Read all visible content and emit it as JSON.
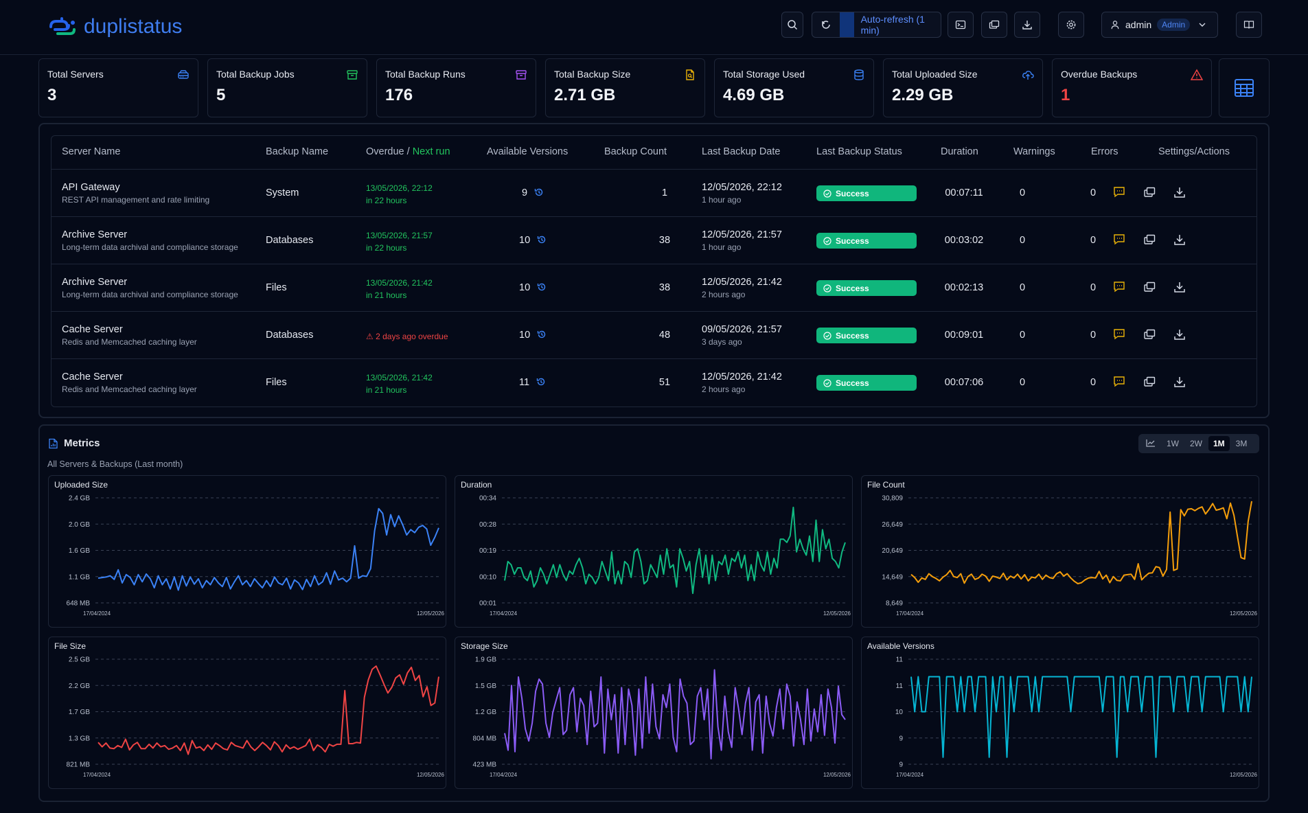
{
  "app": {
    "name": "duplistatus"
  },
  "header": {
    "auto_refresh_label": "Auto-refresh (1 min)",
    "user_name": "admin",
    "user_role": "Admin"
  },
  "summary": [
    {
      "title": "Total Servers",
      "value": "3",
      "icon": "server-icon",
      "color": "#3b82f6"
    },
    {
      "title": "Total Backup Jobs",
      "value": "5",
      "icon": "archive-icon",
      "color": "#22c55e"
    },
    {
      "title": "Total Backup Runs",
      "value": "176",
      "icon": "archive-icon",
      "color": "#a855f7"
    },
    {
      "title": "Total Backup Size",
      "value": "2.71 GB",
      "icon": "file-search-icon",
      "color": "#eab308"
    },
    {
      "title": "Total Storage Used",
      "value": "4.69 GB",
      "icon": "database-icon",
      "color": "#3b82f6"
    },
    {
      "title": "Total Uploaded Size",
      "value": "2.29 GB",
      "icon": "cloud-upload-icon",
      "color": "#3b82f6"
    },
    {
      "title": "Overdue Backups",
      "value": "1",
      "icon": "warning-icon",
      "color": "#ef4444"
    }
  ],
  "table": {
    "headers": {
      "server_name": "Server Name",
      "backup_name": "Backup Name",
      "overdue": "Overdue / ",
      "next_run": "Next run",
      "versions": "Available Versions",
      "count": "Backup Count",
      "last_date": "Last Backup Date",
      "last_status": "Last Backup Status",
      "duration": "Duration",
      "warnings": "Warnings",
      "errors": "Errors",
      "actions": "Settings/Actions"
    },
    "rows": [
      {
        "server": "API Gateway",
        "desc": "REST API management and rate limiting",
        "backup": "System",
        "next_date": "13/05/2026, 22:12",
        "next_rel": "in 22 hours",
        "overdue": false,
        "versions": "9",
        "count": "1",
        "last_date": "12/05/2026, 22:12",
        "last_rel": "1 hour ago",
        "status": "Success",
        "duration": "00:07:11",
        "warnings": "0",
        "errors": "0"
      },
      {
        "server": "Archive Server",
        "desc": "Long-term data archival and compliance storage",
        "backup": "Databases",
        "next_date": "13/05/2026, 21:57",
        "next_rel": "in 22 hours",
        "overdue": false,
        "versions": "10",
        "count": "38",
        "last_date": "12/05/2026, 21:57",
        "last_rel": "1 hour ago",
        "status": "Success",
        "duration": "00:03:02",
        "warnings": "0",
        "errors": "0"
      },
      {
        "server": "Archive Server",
        "desc": "Long-term data archival and compliance storage",
        "backup": "Files",
        "next_date": "13/05/2026, 21:42",
        "next_rel": "in 21 hours",
        "overdue": false,
        "versions": "10",
        "count": "38",
        "last_date": "12/05/2026, 21:42",
        "last_rel": "2 hours ago",
        "status": "Success",
        "duration": "00:02:13",
        "warnings": "0",
        "errors": "0"
      },
      {
        "server": "Cache Server",
        "desc": "Redis and Memcached caching layer",
        "backup": "Databases",
        "next_date": "⚠ 2 days ago overdue",
        "next_rel": "",
        "overdue": true,
        "versions": "10",
        "count": "48",
        "last_date": "09/05/2026, 21:57",
        "last_rel": "3 days ago",
        "status": "Success",
        "duration": "00:09:01",
        "warnings": "0",
        "errors": "0"
      },
      {
        "server": "Cache Server",
        "desc": "Redis and Memcached caching layer",
        "backup": "Files",
        "next_date": "13/05/2026, 21:42",
        "next_rel": "in 21 hours",
        "overdue": false,
        "versions": "11",
        "count": "51",
        "last_date": "12/05/2026, 21:42",
        "last_rel": "2 hours ago",
        "status": "Success",
        "duration": "00:07:06",
        "warnings": "0",
        "errors": "0"
      }
    ]
  },
  "metrics": {
    "title": "Metrics",
    "subtitle": "All Servers & Backups (Last month)",
    "ranges": [
      "1W",
      "2W",
      "1M",
      "3M"
    ],
    "active_range": "1M"
  },
  "chart_data": [
    {
      "type": "line",
      "title": "Uploaded Size",
      "color": "#3b82f6",
      "x_start": "17/04/2024",
      "x_end": "12/05/2026",
      "yticks": [
        "2.4 GB",
        "2.0 GB",
        "1.6 GB",
        "1.1 GB",
        "648 MB"
      ],
      "ylim": [
        0.648,
        2.4
      ],
      "values": [
        1.06,
        1.07,
        1.08,
        1.1,
        1.04,
        1.2,
        0.98,
        1.12,
        1.07,
        0.95,
        1.12,
        1.0,
        1.13,
        1.05,
        0.9,
        1.1,
        0.95,
        1.05,
        0.88,
        1.08,
        0.86,
        1.1,
        0.93,
        1.08,
        0.96,
        1.05,
        0.9,
        1.02,
        0.95,
        1.07,
        0.98,
        0.92,
        1.07,
        0.88,
        1.0,
        1.1,
        0.95,
        1.02,
        0.92,
        1.05,
        0.97,
        0.9,
        1.02,
        0.92,
        1.08,
        0.98,
        0.95,
        1.06,
        0.88,
        1.03,
        0.98,
        0.87,
        1.04,
        0.92,
        1.1,
        0.95,
        1.0,
        1.15,
        0.96,
        1.18,
        1.03,
        1.06,
        1.0,
        1.06,
        1.6,
        1.06,
        1.1,
        1.09,
        1.22,
        1.85,
        2.22,
        2.14,
        1.78,
        2.12,
        1.92,
        2.1,
        1.95,
        1.78,
        1.87,
        1.82,
        1.91,
        1.94,
        1.88,
        1.61,
        1.74,
        1.9
      ]
    },
    {
      "type": "line",
      "title": "Duration",
      "color": "#10b981",
      "x_start": "17/04/2024",
      "x_end": "12/05/2026",
      "yticks": [
        "00:34",
        "00:28",
        "00:19",
        "00:10",
        "00:01"
      ],
      "ylim": [
        1,
        34
      ],
      "values": [
        8,
        14,
        13,
        10,
        12,
        12,
        9,
        8,
        11,
        6,
        8,
        12,
        10,
        7,
        10,
        13,
        9,
        13,
        10,
        8,
        11,
        10,
        13,
        15,
        12,
        7,
        10,
        9,
        7,
        9,
        14,
        11,
        8,
        17,
        7,
        11,
        7,
        14,
        13,
        9,
        17,
        18,
        14,
        7,
        8,
        13,
        11,
        9,
        16,
        10,
        18,
        12,
        13,
        6,
        18,
        15,
        11,
        14,
        4,
        13,
        18,
        9,
        16,
        7,
        16,
        8,
        14,
        13,
        16,
        10,
        15,
        14,
        17,
        12,
        16,
        8,
        13,
        8,
        17,
        13,
        11,
        17,
        10,
        15,
        12,
        21,
        21,
        20,
        22,
        31,
        17,
        21,
        18,
        16,
        22,
        14,
        27,
        14,
        24,
        18,
        21,
        15,
        14,
        12,
        17,
        20
      ]
    },
    {
      "type": "line",
      "title": "File Count",
      "color": "#f59e0b",
      "x_start": "17/04/2024",
      "x_end": "12/05/2026",
      "yticks": [
        "30,809",
        "26,649",
        "20,649",
        "14,649",
        "8,649"
      ],
      "ylim": [
        8649,
        30809
      ],
      "values": [
        14649,
        14000,
        13000,
        13900,
        13600,
        14800,
        14200,
        13800,
        13300,
        14100,
        14600,
        15500,
        14200,
        14000,
        14800,
        12800,
        14200,
        14700,
        13600,
        13900,
        14700,
        14300,
        13200,
        14300,
        14100,
        13800,
        14900,
        13500,
        14300,
        13900,
        14700,
        13700,
        14600,
        13300,
        14100,
        13900,
        14700,
        13600,
        14500,
        14000,
        13800,
        14800,
        15200,
        14300,
        14800,
        13900,
        13200,
        12700,
        12900,
        13500,
        13900,
        14000,
        13900,
        15300,
        13700,
        14500,
        12900,
        14200,
        13400,
        13300,
        14500,
        14600,
        14700,
        13600,
        16900,
        13500,
        14300,
        14900,
        15000,
        16300,
        16100,
        14300,
        15700,
        27800,
        15500,
        15800,
        28300,
        27000,
        28400,
        28500,
        28100,
        28600,
        28900,
        27400,
        28400,
        29600,
        28200,
        28400,
        28700,
        26400,
        29700,
        27100,
        22600,
        18200,
        17900,
        25800,
        30100
      ]
    },
    {
      "type": "line",
      "title": "File Size",
      "color": "#ef4444",
      "x_start": "17/04/2024",
      "x_end": "12/05/2026",
      "yticks": [
        "2.5 GB",
        "2.2 GB",
        "1.7 GB",
        "1.3 GB",
        "821 MB"
      ],
      "ylim": [
        0.821,
        2.5
      ],
      "values": [
        1.17,
        1.1,
        1.16,
        1.08,
        1.07,
        1.12,
        1.09,
        1.22,
        1.05,
        1.13,
        1.17,
        1.07,
        1.07,
        1.14,
        1.08,
        1.16,
        1.1,
        1.12,
        1.06,
        1.08,
        1.12,
        1.04,
        1.16,
        0.98,
        1.2,
        1.08,
        1.1,
        1.04,
        1.13,
        1.06,
        1.16,
        1.12,
        1.07,
        1.05,
        1.17,
        1.12,
        1.1,
        1.08,
        1.2,
        1.1,
        1.04,
        1.1,
        1.17,
        1.12,
        1.05,
        1.18,
        1.12,
        1.02,
        1.13,
        1.07,
        1.1,
        1.06,
        1.09,
        1.12,
        1.22,
        1.04,
        1.13,
        1.09,
        1.02,
        1.14,
        1.11,
        1.14,
        1.14,
        2.0,
        1.15,
        1.15,
        1.17,
        1.16,
        1.89,
        2.17,
        2.34,
        2.39,
        2.25,
        2.1,
        1.96,
        2.05,
        2.2,
        2.25,
        2.1,
        2.28,
        2.37,
        2.16,
        2.24,
        1.9,
        2.06,
        1.76,
        1.8,
        2.22
      ]
    },
    {
      "type": "line",
      "title": "Storage Size",
      "color": "#8b5cf6",
      "x_start": "17/04/2024",
      "x_end": "12/05/2026",
      "yticks": [
        "1.9 GB",
        "1.5 GB",
        "1.2 GB",
        "804 MB",
        "423 MB"
      ],
      "ylim": [
        0.423,
        1.9
      ],
      "values": [
        0.86,
        0.62,
        1.53,
        0.6,
        1.65,
        1.35,
        0.92,
        0.75,
        1.0,
        1.45,
        1.62,
        1.55,
        1.0,
        0.8,
        1.15,
        1.33,
        1.5,
        0.84,
        0.9,
        1.4,
        1.5,
        0.88,
        1.35,
        1.25,
        0.7,
        1.45,
        0.95,
        1.0,
        1.65,
        0.58,
        1.48,
        1.05,
        1.4,
        0.58,
        1.5,
        0.7,
        1.48,
        1.25,
        0.55,
        1.48,
        0.65,
        1.65,
        0.86,
        1.55,
        0.95,
        0.78,
        1.4,
        1.22,
        1.55,
        0.8,
        0.6,
        1.62,
        1.38,
        1.28,
        0.7,
        0.75,
        1.38,
        1.5,
        1.05,
        1.48,
        0.5,
        1.75,
        0.95,
        0.62,
        1.38,
        0.88,
        0.66,
        1.5,
        1.2,
        0.84,
        1.28,
        1.5,
        0.62,
        1.3,
        1.4,
        0.58,
        1.38,
        1.0,
        0.82,
        1.22,
        1.48,
        0.92,
        1.55,
        1.38,
        0.68,
        1.3,
        1.05,
        0.7,
        1.48,
        0.75,
        1.2,
        0.88,
        1.4,
        0.83,
        1.48,
        1.22,
        0.72,
        1.52,
        1.12,
        1.05
      ]
    },
    {
      "type": "line",
      "title": "Available Versions",
      "color": "#06b6d4",
      "x_start": "17/04/2024",
      "x_end": "12/05/2026",
      "yticks": [
        "11",
        "11",
        "10",
        "9",
        "9"
      ],
      "ylim": [
        8.5,
        11.5
      ],
      "values": [
        11,
        10,
        11,
        10,
        10,
        11,
        11,
        11,
        11,
        8.7,
        11,
        11,
        11,
        10,
        11,
        10,
        11,
        11,
        10,
        11,
        11,
        11,
        8.7,
        11,
        10,
        11,
        11,
        8.7,
        11,
        10,
        11,
        11,
        11,
        11,
        10,
        11,
        10,
        11,
        11,
        11,
        11,
        11,
        11,
        11,
        11,
        10,
        11,
        11,
        11,
        11,
        11,
        11,
        11,
        11,
        10,
        11,
        11,
        11,
        8.7,
        11,
        11,
        10,
        11,
        11,
        11,
        10,
        11,
        11,
        11,
        8.7,
        11,
        11,
        11,
        11,
        10,
        11,
        11,
        11,
        10,
        11,
        11,
        11,
        10,
        11,
        11,
        11,
        11,
        11,
        10,
        11,
        11,
        11,
        11,
        10,
        11,
        10,
        11
      ]
    }
  ]
}
